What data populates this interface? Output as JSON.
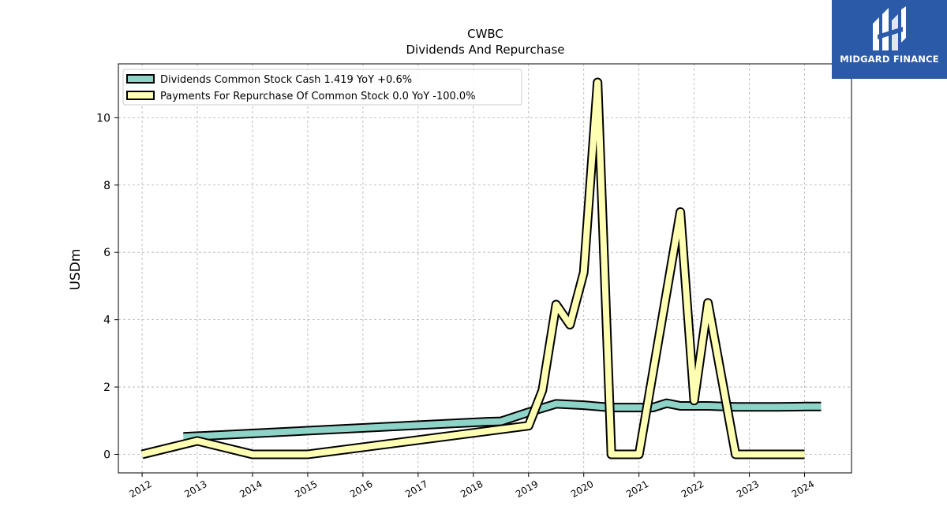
{
  "chart_data": {
    "type": "line",
    "title": "CWBC",
    "subtitle": "Dividends And Repurchase",
    "ylabel": "USDm",
    "xlabel": "",
    "xlim": [
      2011.57,
      2024.85
    ],
    "ylim": [
      -0.55,
      11.6
    ],
    "x_ticks": [
      "2012",
      "2013",
      "2014",
      "2015",
      "2016",
      "2017",
      "2018",
      "2019",
      "2020",
      "2021",
      "2022",
      "2023",
      "2024"
    ],
    "y_ticks": [
      "0",
      "2",
      "4",
      "6",
      "8",
      "10"
    ],
    "grid": true,
    "legend_position": "top-left",
    "series": [
      {
        "name": "Dividends Common Stock Cash  1.419 YoY +0.6%",
        "color": "#8dd3c7",
        "points": [
          [
            2012.75,
            0.52
          ],
          [
            2018.25,
            0.97
          ],
          [
            2018.5,
            0.98
          ],
          [
            2019.0,
            1.25
          ],
          [
            2019.5,
            1.5
          ],
          [
            2020.0,
            1.46
          ],
          [
            2020.5,
            1.39
          ],
          [
            2021.0,
            1.39
          ],
          [
            2021.25,
            1.39
          ],
          [
            2021.5,
            1.52
          ],
          [
            2021.75,
            1.44
          ],
          [
            2022.25,
            1.44
          ],
          [
            2022.75,
            1.41
          ],
          [
            2023.5,
            1.41
          ],
          [
            2024.0,
            1.42
          ],
          [
            2024.3,
            1.42
          ]
        ]
      },
      {
        "name": "Payments For Repurchase Of Common Stock  0.0 YoY -100.0%",
        "color": "#ffffb3",
        "points": [
          [
            2012.0,
            0.0
          ],
          [
            2013.0,
            0.4
          ],
          [
            2014.0,
            0.0
          ],
          [
            2015.0,
            0.0
          ],
          [
            2019.0,
            0.85
          ],
          [
            2019.25,
            1.9
          ],
          [
            2019.5,
            4.45
          ],
          [
            2019.75,
            3.85
          ],
          [
            2020.0,
            5.4
          ],
          [
            2020.25,
            11.05
          ],
          [
            2020.5,
            0.0
          ],
          [
            2021.0,
            0.0
          ],
          [
            2021.75,
            7.2
          ],
          [
            2022.0,
            1.6
          ],
          [
            2022.25,
            4.5
          ],
          [
            2022.75,
            0.0
          ],
          [
            2023.25,
            0.0
          ],
          [
            2024.0,
            0.0
          ]
        ]
      }
    ]
  },
  "logo": {
    "text": "MIDGARD FINANCE",
    "background": "#2a5aa8"
  }
}
